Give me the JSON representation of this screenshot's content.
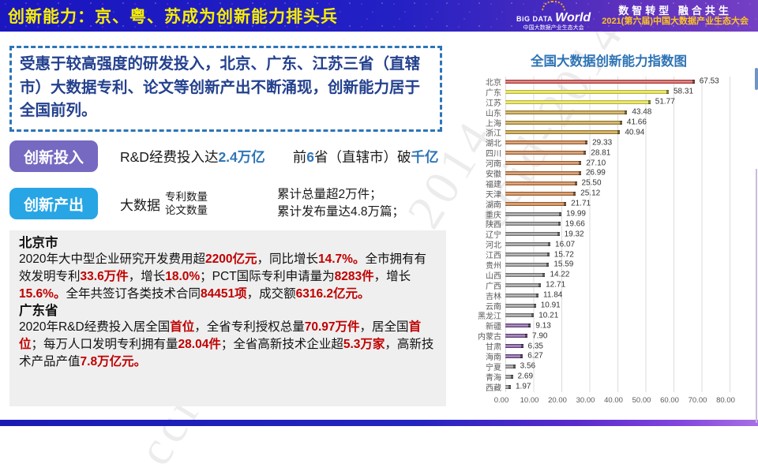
{
  "header": {
    "title": "创新能力：京、粤、苏成为创新能力排头兵",
    "logo": {
      "brand_top": "BiG DATA",
      "brand_main": "World",
      "brand_sub": "中国大数据产业生态大会",
      "slogan": "数智转型 融合共生",
      "event": "2021(第六届)中国大数据产业生态大会"
    }
  },
  "intro": {
    "text": "受惠于较高强度的研发投入，北京、广东、江苏三省（直辖市）大数据专利、论文等创新产出不断涌现，创新能力居于全国前列。"
  },
  "rows": {
    "investment": {
      "label": "创新投入",
      "runs": [
        {
          "t": "R&D经费投入达"
        },
        {
          "t": "2.4万亿",
          "h": true
        },
        {
          "t": "　　前"
        },
        {
          "t": "6",
          "h": true
        },
        {
          "t": "省（直辖市）破"
        },
        {
          "t": "千亿",
          "h": true
        }
      ]
    },
    "output": {
      "label": "创新产出",
      "subject": "大数据",
      "stack1": [
        "专利数量",
        "论文数量"
      ],
      "stack2": [
        "累计总量超2万件；",
        "累计发布量达4.8万篇；"
      ]
    }
  },
  "detail": {
    "beijing": {
      "title": "北京市",
      "runs": [
        {
          "t": "2020年大中型企业研究开发费用超"
        },
        {
          "t": "2200亿元",
          "h": true
        },
        {
          "t": "，同比增长"
        },
        {
          "t": "14.7%。",
          "h": true
        },
        {
          "t": "全市拥有有效发明专利"
        },
        {
          "t": "33.6万件",
          "h": true
        },
        {
          "t": "，增长"
        },
        {
          "t": "18.0%",
          "h": true
        },
        {
          "t": "；PCT国际专利申请量为"
        },
        {
          "t": "8283件",
          "h": true
        },
        {
          "t": "，增长"
        },
        {
          "t": "15.6%。",
          "h": true
        },
        {
          "t": "全年共签订各类技术合同"
        },
        {
          "t": "84451项",
          "h": true
        },
        {
          "t": "，成交额"
        },
        {
          "t": "6316.2亿元。",
          "h": true
        }
      ]
    },
    "guangdong": {
      "title": "广东省",
      "runs": [
        {
          "t": "2020年R&D经费投入居全国"
        },
        {
          "t": "首位",
          "h": true
        },
        {
          "t": "，全省专利授权总量"
        },
        {
          "t": "70.97万件",
          "h": true
        },
        {
          "t": "，居全国"
        },
        {
          "t": "首位",
          "h": true
        },
        {
          "t": "；每万人口发明专利拥有量"
        },
        {
          "t": "28.04件",
          "h": true
        },
        {
          "t": "；全省高新技术企业超"
        },
        {
          "t": "5.3万家",
          "h": true
        },
        {
          "t": "，高新技术产品产值"
        },
        {
          "t": "7.8万亿元。",
          "h": true
        }
      ]
    }
  },
  "chart_data": {
    "type": "bar",
    "orientation": "horizontal",
    "title": "全国大数据创新能力指数图",
    "categories": [
      "北京",
      "广东",
      "江苏",
      "山东",
      "上海",
      "浙江",
      "湖北",
      "四川",
      "河南",
      "安徽",
      "福建",
      "天津",
      "湖南",
      "重庆",
      "陕西",
      "辽宁",
      "河北",
      "江西",
      "贵州",
      "山西",
      "广西",
      "吉林",
      "云南",
      "黑龙江",
      "新疆",
      "内蒙古",
      "甘肃",
      "海南",
      "宁夏",
      "青海",
      "西藏"
    ],
    "values": [
      67.53,
      58.31,
      51.77,
      43.48,
      41.66,
      40.94,
      29.33,
      28.81,
      27.1,
      26.99,
      25.5,
      25.12,
      21.71,
      19.99,
      19.66,
      19.32,
      16.07,
      15.72,
      15.59,
      14.22,
      12.71,
      11.84,
      10.91,
      10.21,
      9.13,
      7.9,
      6.35,
      6.27,
      3.56,
      2.69,
      1.97
    ],
    "bar_colors": [
      "#c92723",
      "#e7e31f",
      "#e7e31f",
      "#b8870f",
      "#b8870f",
      "#b8870f",
      "#c05f14",
      "#c05f14",
      "#c05f14",
      "#c05f14",
      "#c05f14",
      "#c05f14",
      "#c05f14",
      "#7b7b7b",
      "#7b7b7b",
      "#7b7b7b",
      "#7b7b7b",
      "#7b7b7b",
      "#7b7b7b",
      "#7b7b7b",
      "#7b7b7b",
      "#7b7b7b",
      "#7b7b7b",
      "#7b7b7b",
      "#5f2c87",
      "#5f2c87",
      "#5f2c87",
      "#5f2c87",
      "#7b7b7b",
      "#7b7b7b",
      "#7b7b7b"
    ],
    "xticks": [
      "0.00",
      "10.00",
      "20.00",
      "30.00",
      "40.00",
      "50.00",
      "60.00",
      "70.00",
      "80.00"
    ],
    "xlim": [
      0,
      87
    ],
    "grid": true,
    "legend": "none"
  },
  "watermark": {
    "text": "ccid-2014"
  },
  "colors": {
    "accent_blue": "#2e75b6",
    "highlight_red": "#c00000",
    "pill_purple": "#7569c1",
    "pill_cyan": "#27a5e4",
    "header_yellow": "#f7ef00",
    "event_gold": "#ffc321"
  }
}
